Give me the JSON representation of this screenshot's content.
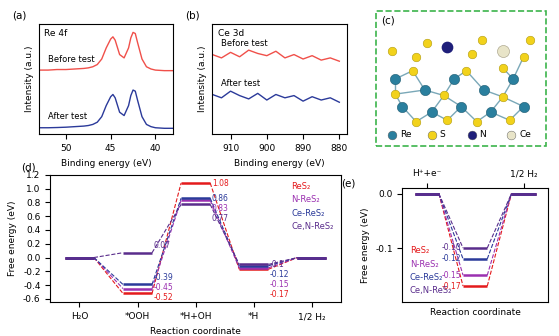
{
  "chart_data": [
    {
      "type": "line",
      "panel_label": "(a)",
      "title": "Re 4f",
      "x_label": "Binding energy (eV)",
      "y_label": "Intensity (a.u.)",
      "x": [
        53,
        52,
        51,
        50,
        49,
        48,
        47.5,
        47,
        46.5,
        46,
        45.5,
        45,
        44.75,
        44.5,
        44,
        43.5,
        43,
        42.75,
        42.5,
        42.25,
        42,
        41.5,
        41,
        40.5,
        40,
        39,
        38
      ],
      "series": [
        {
          "name": "Before test",
          "color": "#f0504a",
          "values": [
            5.8,
            5.8,
            5.85,
            5.85,
            5.9,
            5.95,
            6.0,
            6.1,
            6.3,
            6.8,
            7.8,
            8.6,
            8.8,
            8.5,
            7.2,
            6.9,
            7.8,
            8.7,
            9.2,
            9.1,
            8.3,
            6.8,
            6.1,
            5.9,
            5.8,
            5.75,
            5.75
          ]
        },
        {
          "name": "After test",
          "color": "#2b3a9a",
          "values": [
            0.6,
            0.6,
            0.62,
            0.65,
            0.7,
            0.75,
            0.8,
            0.9,
            1.1,
            1.6,
            2.6,
            3.4,
            3.6,
            3.3,
            2.0,
            1.7,
            2.6,
            3.5,
            4.0,
            3.9,
            3.1,
            1.6,
            0.9,
            0.7,
            0.6,
            0.55,
            0.55
          ]
        }
      ],
      "xlim": [
        53,
        38
      ],
      "xticks": [
        50,
        45,
        40
      ],
      "ylim": [
        0,
        10
      ],
      "tick_labels": "x"
    },
    {
      "type": "line",
      "panel_label": "(b)",
      "title": "Ce 3d",
      "x_label": "Binding energy (eV)",
      "y_label": "Intensity (a.u.)",
      "x": [
        915,
        912.5,
        910,
        907.5,
        905,
        902.5,
        900,
        897.5,
        895,
        892.5,
        890,
        887.5,
        885,
        882.5,
        880
      ],
      "series": [
        {
          "name": "Before test",
          "color": "#f0504a",
          "values": [
            7.2,
            6.9,
            7.4,
            7.0,
            7.6,
            7.3,
            7.1,
            7.5,
            6.9,
            7.2,
            6.8,
            7.1,
            6.7,
            6.9,
            6.6
          ]
        },
        {
          "name": "After test",
          "color": "#2b3a9a",
          "values": [
            3.6,
            3.3,
            3.9,
            3.5,
            3.2,
            3.7,
            3.1,
            3.6,
            3.3,
            3.5,
            3.0,
            3.4,
            3.1,
            3.3,
            2.9
          ]
        }
      ],
      "xlim": [
        915,
        878
      ],
      "xticks": [
        910,
        900,
        890,
        880
      ],
      "ylim": [
        0,
        10
      ],
      "tick_labels": "x"
    },
    {
      "type": "energy_levels",
      "panel_label": "(d)",
      "x_label": "Reaction coordinate",
      "y_label": "Free energy (eV)",
      "categories": [
        "H₂O",
        "*OOH",
        "*H+OH",
        "*H",
        "1/2 H₂"
      ],
      "series": [
        {
          "name": "ReS₂",
          "color": "#e41a1c",
          "values": [
            0,
            -0.52,
            1.08,
            -0.17,
            0
          ],
          "value_labels": [
            null,
            "-0.52",
            "1.08",
            "-0.17",
            null
          ]
        },
        {
          "name": "N-ReS₂",
          "color": "#9b30b0",
          "values": [
            0,
            -0.45,
            0.83,
            -0.15,
            0
          ],
          "value_labels": [
            null,
            "-0.45",
            "0.83",
            "-0.15",
            null
          ]
        },
        {
          "name": "Ce-ReS₂",
          "color": "#2b3a9a",
          "values": [
            0,
            -0.39,
            0.86,
            -0.12,
            0
          ],
          "value_labels": [
            null,
            "-0.39",
            "0.86",
            "-0.12",
            null
          ]
        },
        {
          "name": "Ce,N-ReS₂",
          "color": "#5a2d8c",
          "values": [
            0,
            0.07,
            0.77,
            -0.1,
            0
          ],
          "value_labels": [
            null,
            "0.07",
            "0.77",
            "-0.1",
            null
          ]
        }
      ],
      "ylim": [
        -0.65,
        1.2
      ],
      "yticks": [
        -0.6,
        -0.4,
        -0.2,
        0.0,
        0.2,
        0.4,
        0.6,
        0.8,
        1.0,
        1.2
      ],
      "line_style": "dashed",
      "data_labels": true,
      "legend": "upper right"
    },
    {
      "type": "energy_levels",
      "panel_label": "(e)",
      "x_label": "Reaction coordinate",
      "y_label": "Free energy (eV)",
      "categories": [
        "H⁺+e⁻",
        null,
        "1/2 H₂"
      ],
      "series": [
        {
          "name": "ReS₂",
          "color": "#e41a1c",
          "values": [
            0,
            -0.17,
            0
          ],
          "value_labels": [
            null,
            "-0.17",
            null
          ]
        },
        {
          "name": "N-ReS₂",
          "color": "#9b30b0",
          "values": [
            0,
            -0.15,
            0
          ],
          "value_labels": [
            null,
            "-0.15",
            null
          ]
        },
        {
          "name": "Ce-ReS₂",
          "color": "#2b3a9a",
          "values": [
            0,
            -0.12,
            0
          ],
          "value_labels": [
            null,
            "-0.12",
            null
          ]
        },
        {
          "name": "Ce,N-ReS₂",
          "color": "#5a2d8c",
          "values": [
            0,
            -0.1,
            0
          ],
          "value_labels": [
            null,
            "-0.10",
            null
          ]
        }
      ],
      "ylim": [
        -0.2,
        0.01
      ],
      "yticks": [
        0.0,
        -0.1
      ],
      "line_style": "dashed",
      "data_labels": true,
      "legend": "lower left"
    }
  ],
  "structure": {
    "panel_label": "(c)",
    "legend": [
      {
        "name": "Re",
        "color": "#2a7f9e"
      },
      {
        "name": "S",
        "color": "#f2d21b"
      },
      {
        "name": "N",
        "color": "#1f1f7a"
      },
      {
        "name": "Ce",
        "color": "#e8e4c8"
      }
    ]
  }
}
